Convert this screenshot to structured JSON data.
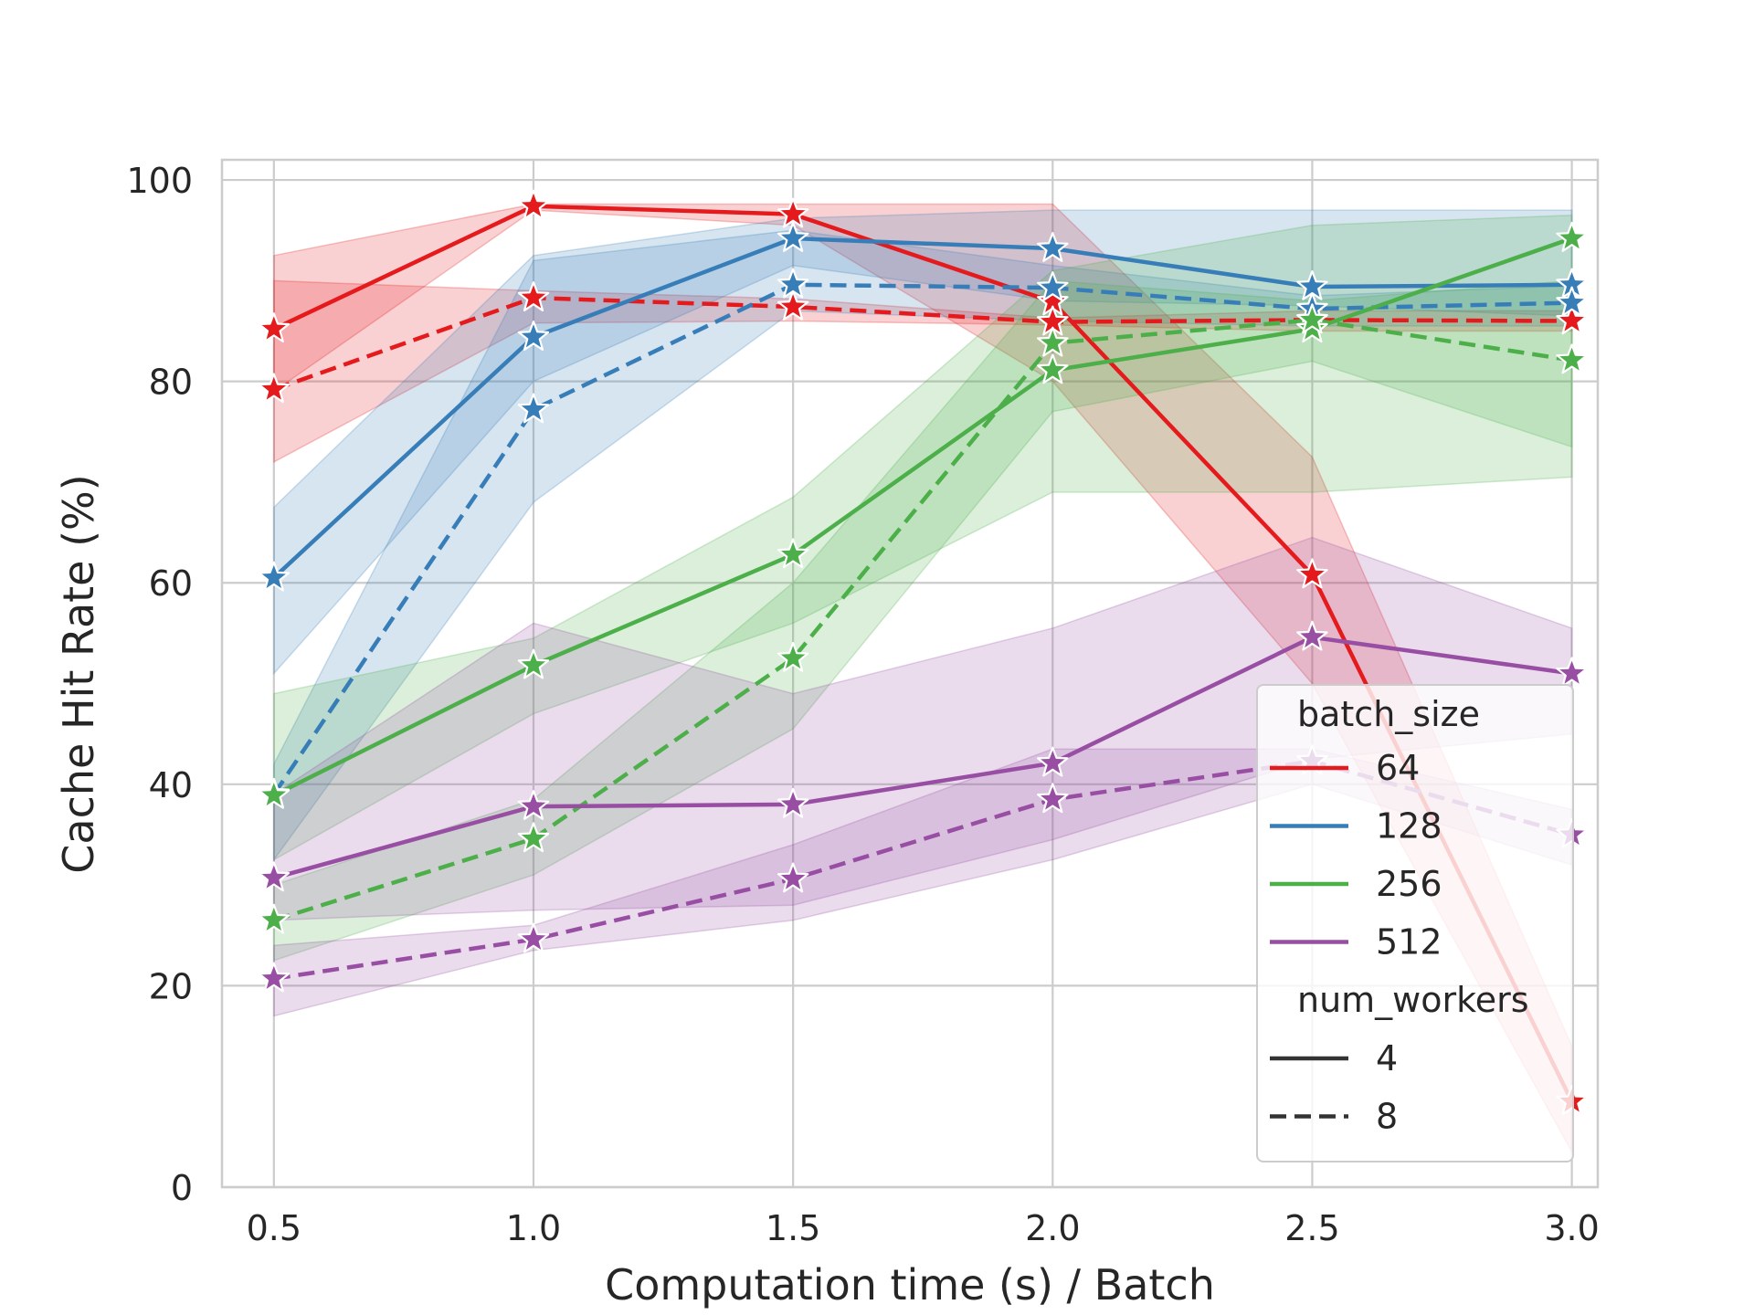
{
  "chart_data": {
    "type": "line",
    "xlabel": "Computation time (s) / Batch",
    "ylabel": "Cache Hit Rate (%)",
    "xlim": [
      0.4,
      3.05
    ],
    "ylim": [
      0,
      102
    ],
    "x_ticks": [
      "0.5",
      "1.0",
      "1.5",
      "2.0",
      "2.5",
      "3.0"
    ],
    "y_ticks": [
      "0",
      "20",
      "40",
      "60",
      "80",
      "100"
    ],
    "grid": true,
    "legend_position": "lower-right",
    "legend": {
      "hue_title": "batch_size",
      "style_title": "num_workers",
      "hue_entries": [
        {
          "label": "64",
          "color": "#e41a1c"
        },
        {
          "label": "128",
          "color": "#377eb8"
        },
        {
          "label": "256",
          "color": "#4daf4a"
        },
        {
          "label": "512",
          "color": "#984ea3"
        }
      ],
      "style_entries": [
        {
          "label": "4",
          "dash": "solid"
        },
        {
          "label": "8",
          "dash": "dashed"
        }
      ]
    },
    "x": [
      0.5,
      1.0,
      1.5,
      2.0,
      2.5,
      3.0
    ],
    "series": [
      {
        "batch_size": "64",
        "num_workers": "4",
        "color": "#e41a1c",
        "dash": "solid",
        "values": [
          85.2,
          97.4,
          96.6,
          87.9,
          60.8,
          8.5
        ],
        "lower": [
          79.0,
          97.0,
          95.5,
          80.0,
          50.0,
          3.5
        ],
        "upper": [
          92.5,
          97.6,
          97.6,
          97.6,
          72.5,
          14.0
        ]
      },
      {
        "batch_size": "64",
        "num_workers": "8",
        "color": "#e41a1c",
        "dash": "dashed",
        "values": [
          79.2,
          88.3,
          87.4,
          85.9,
          86.1,
          86.0
        ],
        "lower": [
          72.0,
          85.8,
          86.0,
          85.6,
          85.0,
          85.0
        ],
        "upper": [
          90.0,
          89.0,
          88.2,
          86.3,
          87.0,
          87.0
        ]
      },
      {
        "batch_size": "128",
        "num_workers": "4",
        "color": "#377eb8",
        "dash": "solid",
        "values": [
          60.5,
          84.4,
          94.2,
          93.2,
          89.4,
          89.6
        ],
        "lower": [
          51.0,
          80.0,
          91.5,
          88.0,
          87.5,
          86.5
        ],
        "upper": [
          67.5,
          92.5,
          96.2,
          97.0,
          97.0,
          97.0
        ]
      },
      {
        "batch_size": "128",
        "num_workers": "8",
        "color": "#377eb8",
        "dash": "dashed",
        "values": [
          39.0,
          77.2,
          89.6,
          89.3,
          87.2,
          87.8
        ],
        "lower": [
          32.5,
          68.0,
          87.0,
          86.0,
          85.5,
          85.5
        ],
        "upper": [
          42.0,
          92.0,
          95.0,
          91.5,
          88.5,
          89.5
        ]
      },
      {
        "batch_size": "256",
        "num_workers": "4",
        "color": "#4daf4a",
        "dash": "solid",
        "values": [
          38.9,
          51.8,
          62.8,
          81.1,
          85.2,
          94.2
        ],
        "lower": [
          32.5,
          47.0,
          56.0,
          69.0,
          69.0,
          70.5
        ],
        "upper": [
          49.0,
          54.5,
          68.5,
          91.0,
          95.5,
          96.5
        ]
      },
      {
        "batch_size": "256",
        "num_workers": "8",
        "color": "#4daf4a",
        "dash": "dashed",
        "values": [
          26.5,
          34.6,
          52.5,
          83.8,
          86.1,
          82.1
        ],
        "lower": [
          22.5,
          31.0,
          45.5,
          77.0,
          82.0,
          73.5
        ],
        "upper": [
          30.0,
          38.5,
          60.0,
          90.0,
          88.0,
          90.0
        ]
      },
      {
        "batch_size": "512",
        "num_workers": "4",
        "color": "#984ea3",
        "dash": "solid",
        "values": [
          30.7,
          37.8,
          38.0,
          42.1,
          54.6,
          51.0
        ],
        "lower": [
          26.5,
          27.5,
          28.0,
          34.5,
          42.5,
          45.0
        ],
        "upper": [
          39.0,
          56.0,
          49.0,
          55.5,
          64.5,
          55.5
        ]
      },
      {
        "batch_size": "512",
        "num_workers": "8",
        "color": "#984ea3",
        "dash": "dashed",
        "values": [
          20.7,
          24.6,
          30.6,
          38.5,
          42.3,
          35.0
        ],
        "lower": [
          17.0,
          23.5,
          26.5,
          32.5,
          40.0,
          32.0
        ],
        "upper": [
          24.0,
          26.0,
          34.0,
          43.5,
          43.5,
          37.5
        ]
      }
    ]
  }
}
